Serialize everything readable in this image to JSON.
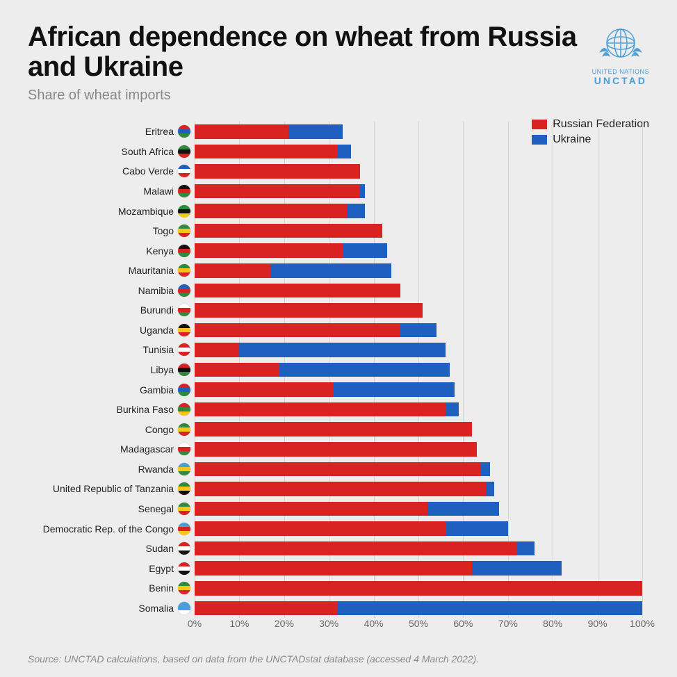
{
  "header": {
    "title": "African dependence on wheat from Russia and Ukraine",
    "subtitle": "Share of wheat imports",
    "logo_line1": "UNITED NATIONS",
    "logo_line2": "UNCTAD",
    "logo_color": "#4a9fd8"
  },
  "chart": {
    "type": "stacked-horizontal-bar",
    "xlim": [
      0,
      100
    ],
    "xtick_step": 10,
    "xtick_suffix": "%",
    "grid_color": "#d5d5d5",
    "background_color": "#ededed",
    "label_fontsize": 14,
    "tick_fontsize": 14,
    "series": [
      {
        "key": "russia",
        "label": "Russian Federation",
        "color": "#d92323"
      },
      {
        "key": "ukraine",
        "label": "Ukraine",
        "color": "#1f5fbf"
      }
    ],
    "rows": [
      {
        "label": "Eritrea",
        "russia": 21,
        "ukraine": 12,
        "flag": [
          "#d92323",
          "#1f5fbf",
          "#2e8b3d"
        ]
      },
      {
        "label": "South Africa",
        "russia": 32,
        "ukraine": 3,
        "flag": [
          "#2e8b3d",
          "#111111",
          "#d92323"
        ]
      },
      {
        "label": "Cabo Verde",
        "russia": 37,
        "ukraine": 0,
        "flag": [
          "#1f5fbf",
          "#ffffff",
          "#d92323"
        ]
      },
      {
        "label": "Malawi",
        "russia": 37,
        "ukraine": 1,
        "flag": [
          "#111111",
          "#d92323",
          "#2e8b3d"
        ]
      },
      {
        "label": "Mozambique",
        "russia": 34,
        "ukraine": 4,
        "flag": [
          "#2e8b3d",
          "#111111",
          "#f5c518"
        ]
      },
      {
        "label": "Togo",
        "russia": 42,
        "ukraine": 0,
        "flag": [
          "#2e8b3d",
          "#f5c518",
          "#d92323"
        ]
      },
      {
        "label": "Kenya",
        "russia": 33,
        "ukraine": 10,
        "flag": [
          "#111111",
          "#d92323",
          "#2e8b3d"
        ]
      },
      {
        "label": "Mauritania",
        "russia": 17,
        "ukraine": 27,
        "flag": [
          "#2e8b3d",
          "#f5c518",
          "#d92323"
        ]
      },
      {
        "label": "Namibia",
        "russia": 46,
        "ukraine": 0,
        "flag": [
          "#1f5fbf",
          "#d92323",
          "#2e8b3d"
        ]
      },
      {
        "label": "Burundi",
        "russia": 51,
        "ukraine": 0,
        "flag": [
          "#ffffff",
          "#d92323",
          "#2e8b3d"
        ]
      },
      {
        "label": "Uganda",
        "russia": 46,
        "ukraine": 8,
        "flag": [
          "#111111",
          "#f5c518",
          "#d92323"
        ]
      },
      {
        "label": "Tunisia",
        "russia": 10,
        "ukraine": 46,
        "flag": [
          "#d92323",
          "#ffffff",
          "#d92323"
        ]
      },
      {
        "label": "Libya",
        "russia": 19,
        "ukraine": 38,
        "flag": [
          "#d92323",
          "#111111",
          "#2e8b3d"
        ]
      },
      {
        "label": "Gambia",
        "russia": 31,
        "ukraine": 27,
        "flag": [
          "#d92323",
          "#1f5fbf",
          "#2e8b3d"
        ]
      },
      {
        "label": "Burkina Faso",
        "russia": 56,
        "ukraine": 3,
        "flag": [
          "#d92323",
          "#2e8b3d",
          "#f5c518"
        ]
      },
      {
        "label": "Congo",
        "russia": 62,
        "ukraine": 0,
        "flag": [
          "#2e8b3d",
          "#f5c518",
          "#d92323"
        ]
      },
      {
        "label": "Madagascar",
        "russia": 63,
        "ukraine": 0,
        "flag": [
          "#ffffff",
          "#d92323",
          "#2e8b3d"
        ]
      },
      {
        "label": "Rwanda",
        "russia": 64,
        "ukraine": 2,
        "flag": [
          "#4a9fd8",
          "#f5c518",
          "#2e8b3d"
        ]
      },
      {
        "label": "United Republic of Tanzania",
        "russia": 65,
        "ukraine": 2,
        "flag": [
          "#2e8b3d",
          "#f5c518",
          "#111111"
        ]
      },
      {
        "label": "Senegal",
        "russia": 52,
        "ukraine": 16,
        "flag": [
          "#2e8b3d",
          "#f5c518",
          "#d92323"
        ]
      },
      {
        "label": "Democratic Rep. of the Congo",
        "russia": 56,
        "ukraine": 14,
        "flag": [
          "#4a9fd8",
          "#d92323",
          "#f5c518"
        ]
      },
      {
        "label": "Sudan",
        "russia": 72,
        "ukraine": 4,
        "flag": [
          "#d92323",
          "#ffffff",
          "#111111"
        ]
      },
      {
        "label": "Egypt",
        "russia": 62,
        "ukraine": 20,
        "flag": [
          "#d92323",
          "#ffffff",
          "#111111"
        ]
      },
      {
        "label": "Benin",
        "russia": 100,
        "ukraine": 0,
        "flag": [
          "#2e8b3d",
          "#f5c518",
          "#d92323"
        ]
      },
      {
        "label": "Somalia",
        "russia": 32,
        "ukraine": 68,
        "flag": [
          "#4a9fd8",
          "#4a9fd8",
          "#ffffff"
        ]
      }
    ]
  },
  "source": {
    "label": "Source:",
    "text": " UNCTAD calculations, based on data from the UNCTADstat database (accessed 4 March 2022)."
  }
}
